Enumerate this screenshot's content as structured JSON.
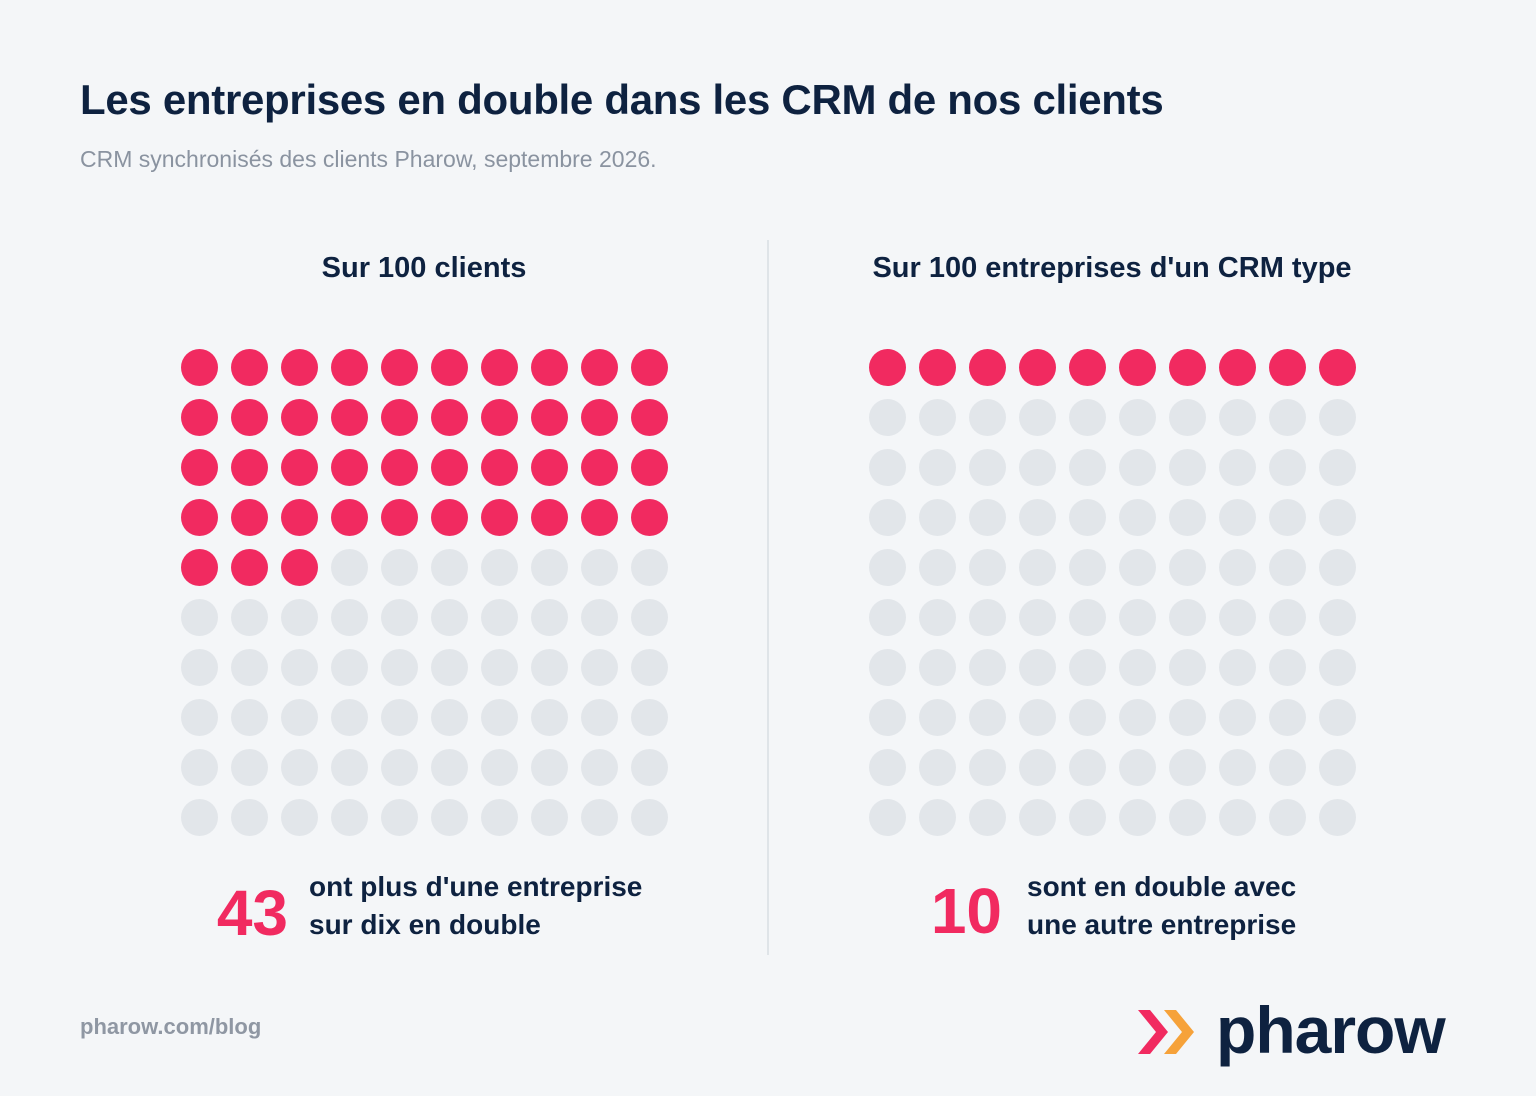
{
  "header": {
    "title": "Les entreprises en double dans les CRM de nos clients",
    "subtitle": "CRM synchronisés des clients Pharow, septembre 2026."
  },
  "colors": {
    "highlight": "#f12a60",
    "empty": "#e2e6ea",
    "text": "#0e2240",
    "muted": "#8a93a0"
  },
  "chart_data": [
    {
      "type": "waffle",
      "title": "Sur 100 clients",
      "total": 100,
      "value": 43,
      "rows": 10,
      "columns": 10,
      "value_label": "43",
      "caption": [
        "ont plus d'une entreprise",
        "sur dix en double"
      ]
    },
    {
      "type": "waffle",
      "title": "Sur 100 entreprises d'un CRM type",
      "total": 100,
      "value": 10,
      "rows": 10,
      "columns": 10,
      "value_label": "10",
      "caption": [
        "sont en double avec",
        "une autre entreprise"
      ]
    }
  ],
  "footer": {
    "url": "pharow.com/blog",
    "brand": "pharow",
    "logo_icon": "double-chevron-right-icon"
  }
}
